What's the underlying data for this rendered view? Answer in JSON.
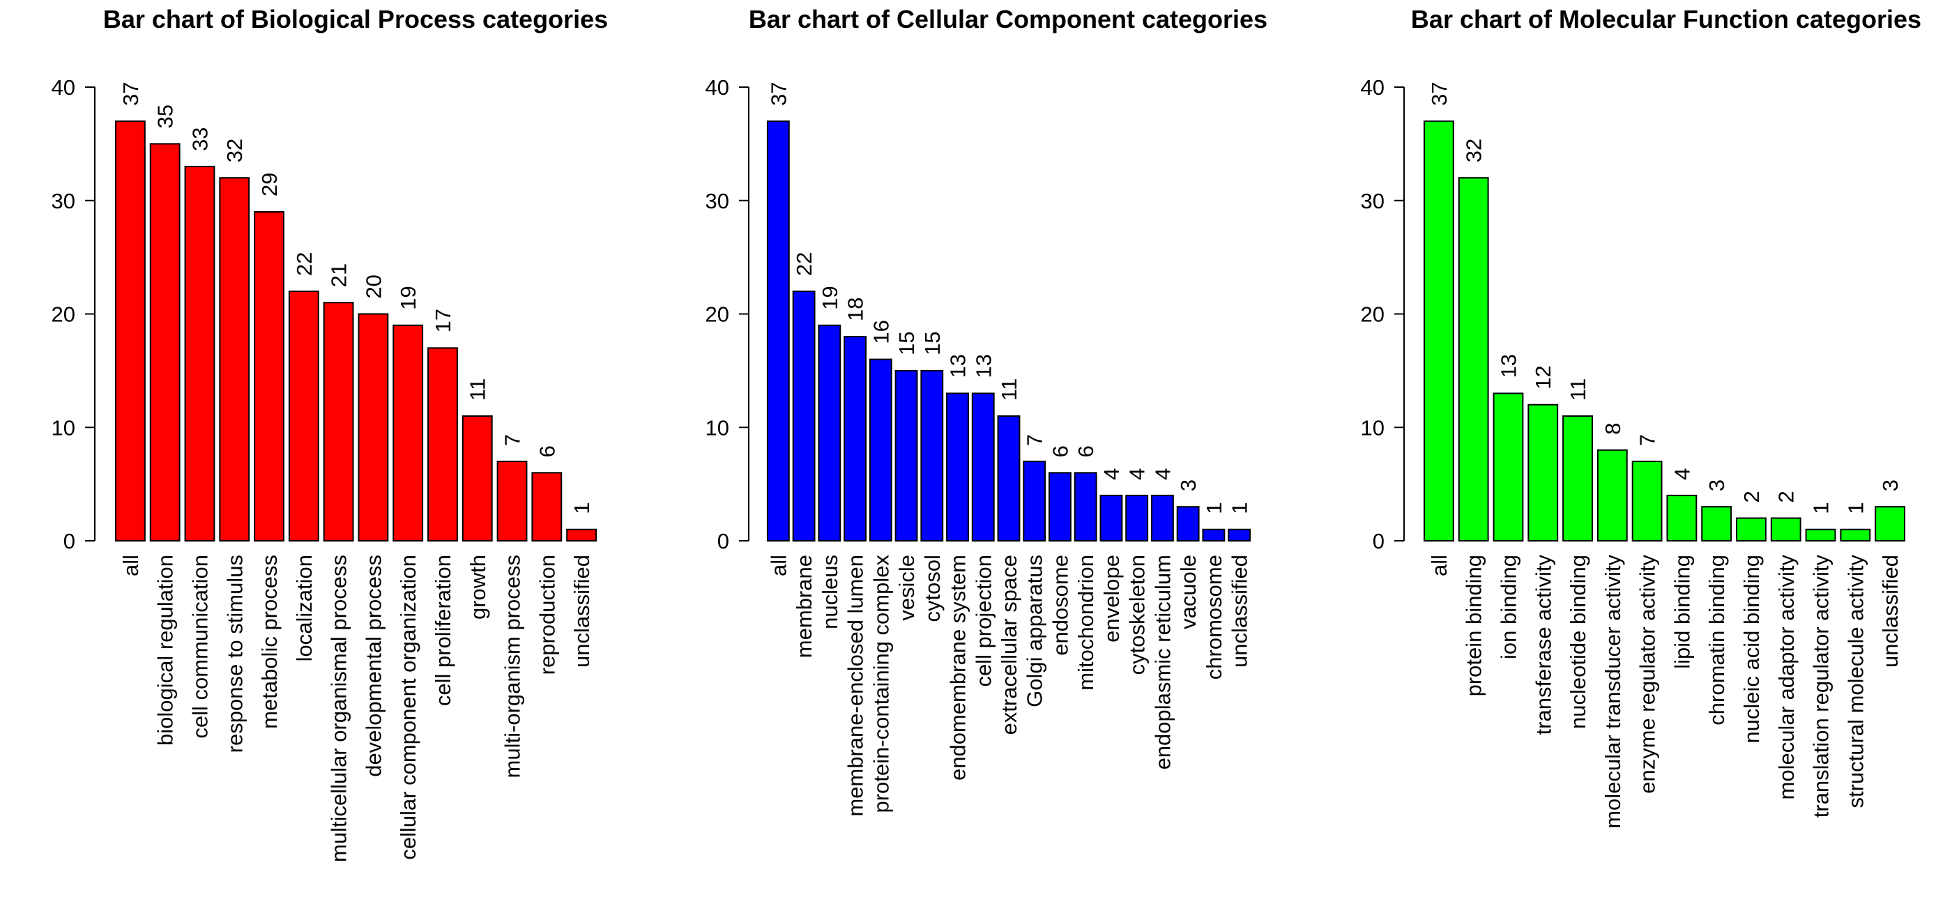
{
  "chart_data": [
    {
      "type": "bar",
      "title": "Bar chart of Biological Process categories",
      "xlabel": "",
      "ylabel": "",
      "ylim": [
        0,
        40
      ],
      "yticks": [
        0,
        10,
        20,
        30,
        40
      ],
      "grid": false,
      "color": "#ff0000",
      "categories": [
        "all",
        "biological regulation",
        "cell communication",
        "response to stimulus",
        "metabolic process",
        "localization",
        "multicellular organismal process",
        "developmental process",
        "cellular component organization",
        "cell proliferation",
        "growth",
        "multi-organism process",
        "reproduction",
        "unclassified"
      ],
      "values": [
        37,
        35,
        33,
        32,
        29,
        22,
        21,
        20,
        19,
        17,
        11,
        7,
        6,
        1
      ]
    },
    {
      "type": "bar",
      "title": "Bar chart of Cellular Component categories",
      "xlabel": "",
      "ylabel": "",
      "ylim": [
        0,
        40
      ],
      "yticks": [
        0,
        10,
        20,
        30,
        40
      ],
      "grid": false,
      "color": "#0000ff",
      "categories": [
        "all",
        "membrane",
        "nucleus",
        "membrane-enclosed lumen",
        "protein-containing complex",
        "vesicle",
        "cytosol",
        "endomembrane system",
        "cell projection",
        "extracellular space",
        "Golgi apparatus",
        "endosome",
        "mitochondrion",
        "envelope",
        "cytoskeleton",
        "endoplasmic reticulum",
        "vacuole",
        "chromosome",
        "unclassified"
      ],
      "values": [
        37,
        22,
        19,
        18,
        16,
        15,
        15,
        13,
        13,
        11,
        7,
        6,
        6,
        4,
        4,
        4,
        3,
        1,
        1
      ]
    },
    {
      "type": "bar",
      "title": "Bar chart of Molecular Function categories",
      "xlabel": "",
      "ylabel": "",
      "ylim": [
        0,
        40
      ],
      "yticks": [
        0,
        10,
        20,
        30,
        40
      ],
      "grid": false,
      "color": "#00ff00",
      "categories": [
        "all",
        "protein binding",
        "ion binding",
        "transferase activity",
        "nucleotide binding",
        "molecular transducer activity",
        "enzyme regulator activity",
        "lipid binding",
        "chromatin binding",
        "nucleic acid binding",
        "molecular adaptor activity",
        "translation regulator activity",
        "structural molecule activity",
        "unclassified"
      ],
      "values": [
        37,
        32,
        13,
        12,
        11,
        8,
        7,
        4,
        3,
        2,
        2,
        1,
        1,
        3
      ]
    }
  ]
}
